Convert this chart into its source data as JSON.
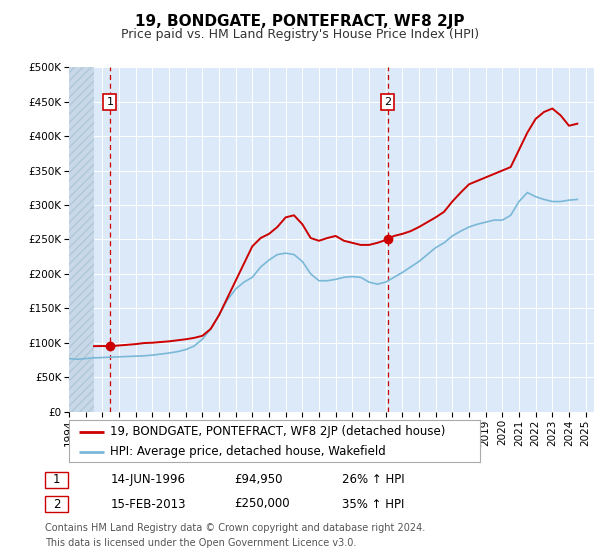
{
  "title": "19, BONDGATE, PONTEFRACT, WF8 2JP",
  "subtitle": "Price paid vs. HM Land Registry's House Price Index (HPI)",
  "ylim": [
    0,
    500000
  ],
  "yticks": [
    0,
    50000,
    100000,
    150000,
    200000,
    250000,
    300000,
    350000,
    400000,
    450000,
    500000
  ],
  "ytick_labels": [
    "£0",
    "£50K",
    "£100K",
    "£150K",
    "£200K",
    "£250K",
    "£300K",
    "£350K",
    "£400K",
    "£450K",
    "£500K"
  ],
  "xlim_start": 1994.0,
  "xlim_end": 2025.5,
  "xticks": [
    1994,
    1995,
    1996,
    1997,
    1998,
    1999,
    2000,
    2001,
    2002,
    2003,
    2004,
    2005,
    2006,
    2007,
    2008,
    2009,
    2010,
    2011,
    2012,
    2013,
    2014,
    2015,
    2016,
    2017,
    2018,
    2019,
    2020,
    2021,
    2022,
    2023,
    2024,
    2025
  ],
  "background_color": "#ffffff",
  "plot_bg_color": "#dce9f8",
  "hatch_color": "#c8d8e8",
  "grid_color": "#ffffff",
  "red_line_color": "#cc0000",
  "blue_line_color": "#7ab8d8",
  "marker_color": "#cc0000",
  "vline_color": "#cc0000",
  "annotation_box_color": "#cc0000",
  "title_fontsize": 11,
  "subtitle_fontsize": 9,
  "tick_fontsize": 7.5,
  "legend_fontsize": 8.5,
  "table_fontsize": 8.5,
  "footer_fontsize": 7.0,
  "sale1_date": "14-JUN-1996",
  "sale1_price": "£94,950",
  "sale1_hpi": "26% ↑ HPI",
  "sale1_year": 1996.45,
  "sale1_value": 94950,
  "sale2_date": "15-FEB-2013",
  "sale2_price": "£250,000",
  "sale2_hpi": "35% ↑ HPI",
  "sale2_year": 2013.12,
  "sale2_value": 250000,
  "legend_line1": "19, BONDGATE, PONTEFRACT, WF8 2JP (detached house)",
  "legend_line2": "HPI: Average price, detached house, Wakefield",
  "footer_line1": "Contains HM Land Registry data © Crown copyright and database right 2024.",
  "footer_line2": "This data is licensed under the Open Government Licence v3.0.",
  "red_x": [
    1995.5,
    1996.0,
    1996.45,
    1997.0,
    1997.5,
    1998.0,
    1998.5,
    1999.0,
    1999.5,
    2000.0,
    2000.5,
    2001.0,
    2001.5,
    2002.0,
    2002.5,
    2003.0,
    2003.5,
    2004.0,
    2004.5,
    2005.0,
    2005.5,
    2006.0,
    2006.5,
    2007.0,
    2007.5,
    2008.0,
    2008.5,
    2009.0,
    2009.5,
    2010.0,
    2010.5,
    2011.0,
    2011.5,
    2012.0,
    2012.5,
    2013.12,
    2013.5,
    2014.0,
    2014.5,
    2015.0,
    2015.5,
    2016.0,
    2016.5,
    2017.0,
    2017.5,
    2018.0,
    2018.5,
    2019.0,
    2019.5,
    2020.0,
    2020.5,
    2021.0,
    2021.5,
    2022.0,
    2022.5,
    2023.0,
    2023.5,
    2024.0,
    2024.5
  ],
  "red_y": [
    95000,
    95200,
    94950,
    96000,
    97000,
    98000,
    99500,
    100000,
    101000,
    102000,
    103500,
    105000,
    107000,
    110000,
    120000,
    140000,
    165000,
    190000,
    215000,
    240000,
    252000,
    258000,
    268000,
    282000,
    285000,
    272000,
    252000,
    248000,
    252000,
    255000,
    248000,
    245000,
    242000,
    242000,
    245000,
    250000,
    255000,
    258000,
    262000,
    268000,
    275000,
    282000,
    290000,
    305000,
    318000,
    330000,
    335000,
    340000,
    345000,
    350000,
    355000,
    380000,
    405000,
    425000,
    435000,
    440000,
    430000,
    415000,
    418000
  ],
  "blue_x": [
    1994.0,
    1994.5,
    1995.0,
    1995.5,
    1996.0,
    1996.5,
    1997.0,
    1997.5,
    1998.0,
    1998.5,
    1999.0,
    1999.5,
    2000.0,
    2000.5,
    2001.0,
    2001.5,
    2002.0,
    2002.5,
    2003.0,
    2003.5,
    2004.0,
    2004.5,
    2005.0,
    2005.5,
    2006.0,
    2006.5,
    2007.0,
    2007.5,
    2008.0,
    2008.5,
    2009.0,
    2009.5,
    2010.0,
    2010.5,
    2011.0,
    2011.5,
    2012.0,
    2012.5,
    2013.0,
    2013.5,
    2014.0,
    2014.5,
    2015.0,
    2015.5,
    2016.0,
    2016.5,
    2017.0,
    2017.5,
    2018.0,
    2018.5,
    2019.0,
    2019.5,
    2020.0,
    2020.5,
    2021.0,
    2021.5,
    2022.0,
    2022.5,
    2023.0,
    2023.5,
    2024.0,
    2024.5
  ],
  "blue_y": [
    77000,
    76000,
    77000,
    78000,
    78500,
    79000,
    79500,
    80000,
    80500,
    81000,
    82000,
    83500,
    85000,
    87000,
    90000,
    95000,
    105000,
    120000,
    140000,
    162000,
    178000,
    188000,
    195000,
    210000,
    220000,
    228000,
    230000,
    228000,
    218000,
    200000,
    190000,
    190000,
    192000,
    195000,
    196000,
    195000,
    188000,
    185000,
    188000,
    195000,
    202000,
    210000,
    218000,
    228000,
    238000,
    245000,
    255000,
    262000,
    268000,
    272000,
    275000,
    278000,
    278000,
    285000,
    305000,
    318000,
    312000,
    308000,
    305000,
    305000,
    307000,
    308000
  ]
}
